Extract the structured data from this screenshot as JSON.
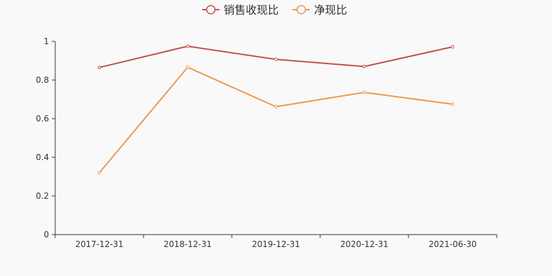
{
  "chart_data": {
    "type": "line",
    "categories": [
      "2017-12-31",
      "2018-12-31",
      "2019-12-31",
      "2020-12-31",
      "2021-06-30"
    ],
    "series": [
      {
        "name": "销售收现比",
        "color": "#c23531",
        "line_color": "#c0504d",
        "values": [
          0.865,
          0.975,
          0.907,
          0.87,
          0.972
        ]
      },
      {
        "name": "净现比",
        "color": "#f0974a",
        "line_color": "#f0974a",
        "values": [
          0.32,
          0.866,
          0.662,
          0.736,
          0.675
        ]
      }
    ],
    "y_ticks": [
      "0",
      "0.2",
      "0.4",
      "0.6",
      "0.8",
      "1"
    ],
    "ylim": [
      0,
      1
    ],
    "grid": false,
    "legend_position": "top-center"
  }
}
